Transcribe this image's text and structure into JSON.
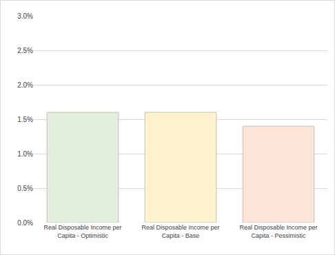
{
  "chart_data": {
    "type": "bar",
    "categories": [
      "Real Disposable Income per Capita - Optimistic",
      "Real Disposable Income per Capita - Base",
      "Real Disposable Income per Capita - Pessimistic"
    ],
    "values": [
      1.6,
      1.6,
      1.4
    ],
    "colors": [
      "#e2efda",
      "#fff2cc",
      "#fce4d6"
    ],
    "ylim": [
      0,
      3
    ],
    "yticks": [
      {
        "value": 0,
        "label": "0.0%"
      },
      {
        "value": 0.5,
        "label": "0.5%"
      },
      {
        "value": 1,
        "label": "1.0%"
      },
      {
        "value": 1.5,
        "label": "1.5%"
      },
      {
        "value": 2,
        "label": "2.0%"
      },
      {
        "value": 2.5,
        "label": "2.5%"
      },
      {
        "value": 3,
        "label": "3.0%"
      }
    ],
    "grid": true
  }
}
